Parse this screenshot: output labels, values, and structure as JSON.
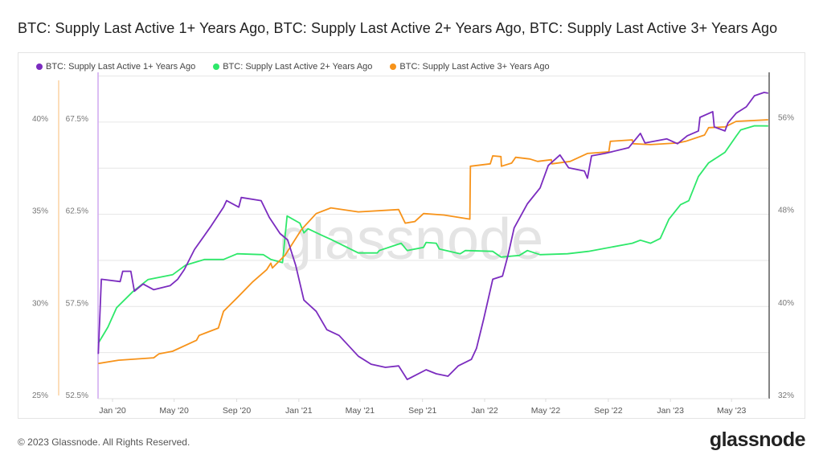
{
  "title": "BTC: Supply Last Active 1+ Years Ago, BTC: Supply Last Active 2+ Years Ago, BTC: Supply Last Active 3+ Years Ago",
  "footer": "© 2023 Glassnode. All Rights Reserved.",
  "logo": "glassnode",
  "watermark": "glassnode",
  "chart_data": {
    "type": "line",
    "grid": true,
    "legend_position": "top-left",
    "x_ticks": [
      "Jan '20",
      "May '20",
      "Sep '20",
      "Jan '21",
      "May '21",
      "Sep '21",
      "Jan '22",
      "May '22",
      "Sep '22",
      "Jan '23",
      "May '23"
    ],
    "x_tick_dates": [
      "2020-01-01",
      "2020-05-01",
      "2020-09-01",
      "2021-01-01",
      "2021-05-01",
      "2021-09-01",
      "2022-01-01",
      "2022-05-01",
      "2022-09-01",
      "2023-01-01",
      "2023-05-01"
    ],
    "axes": {
      "orange_left": {
        "ticks": [
          "25%",
          "30%",
          "35%",
          "40%"
        ],
        "tick_values": [
          25,
          30,
          35,
          40
        ],
        "ylim": [
          25,
          42.7
        ],
        "color": "#f7931a"
      },
      "purple_left": {
        "ticks": [
          "52.5%",
          "57.5%",
          "62.5%",
          "67.5%"
        ],
        "tick_values": [
          52.5,
          57.5,
          62.5,
          67.5
        ],
        "ylim": [
          52.5,
          70.2
        ],
        "color": "#7b2cbf"
      },
      "green_right": {
        "ticks": [
          "32%",
          "40%",
          "48%",
          "56%"
        ],
        "tick_values": [
          32,
          40,
          48,
          56
        ],
        "ylim": [
          32,
          60.2
        ],
        "color": "#222222"
      }
    },
    "series": [
      {
        "name": "BTC: Supply Last Active 1+ Years Ago",
        "color": "#7b2cbf",
        "axis": "purple_left",
        "points": [
          [
            "2019-12-04",
            54.93
          ],
          [
            "2019-12-10",
            58.98
          ],
          [
            "2020-01-16",
            58.85
          ],
          [
            "2020-01-21",
            59.41
          ],
          [
            "2020-02-06",
            59.41
          ],
          [
            "2020-02-13",
            58.33
          ],
          [
            "2020-03-01",
            58.72
          ],
          [
            "2020-03-22",
            58.41
          ],
          [
            "2020-04-23",
            58.63
          ],
          [
            "2020-05-08",
            58.98
          ],
          [
            "2020-05-21",
            59.5
          ],
          [
            "2020-06-10",
            60.59
          ],
          [
            "2020-07-11",
            61.8
          ],
          [
            "2020-08-06",
            62.89
          ],
          [
            "2020-08-12",
            63.24
          ],
          [
            "2020-09-05",
            62.89
          ],
          [
            "2020-09-10",
            63.41
          ],
          [
            "2020-10-19",
            63.24
          ],
          [
            "2020-11-04",
            62.33
          ],
          [
            "2020-11-25",
            61.46
          ],
          [
            "2020-12-10",
            61.11
          ],
          [
            "2020-12-26",
            59.72
          ],
          [
            "2021-01-11",
            57.85
          ],
          [
            "2021-02-04",
            57.24
          ],
          [
            "2021-02-25",
            56.24
          ],
          [
            "2021-03-21",
            55.93
          ],
          [
            "2021-04-28",
            54.8
          ],
          [
            "2021-05-23",
            54.37
          ],
          [
            "2021-06-20",
            54.2
          ],
          [
            "2021-07-16",
            54.28
          ],
          [
            "2021-08-02",
            53.54
          ],
          [
            "2021-09-08",
            54.07
          ],
          [
            "2021-09-28",
            53.85
          ],
          [
            "2021-10-21",
            53.72
          ],
          [
            "2021-11-10",
            54.28
          ],
          [
            "2021-12-06",
            54.63
          ],
          [
            "2021-12-16",
            55.24
          ],
          [
            "2021-12-30",
            56.8
          ],
          [
            "2022-01-17",
            58.98
          ],
          [
            "2022-02-05",
            59.15
          ],
          [
            "2022-02-16",
            60.28
          ],
          [
            "2022-02-28",
            61.76
          ],
          [
            "2022-03-26",
            63.07
          ],
          [
            "2022-04-20",
            63.93
          ],
          [
            "2022-05-06",
            65.15
          ],
          [
            "2022-05-29",
            65.72
          ],
          [
            "2022-06-15",
            65.02
          ],
          [
            "2022-07-16",
            64.85
          ],
          [
            "2022-07-22",
            64.46
          ],
          [
            "2022-07-30",
            65.67
          ],
          [
            "2022-08-25",
            65.8
          ],
          [
            "2022-10-11",
            66.11
          ],
          [
            "2022-11-03",
            66.89
          ],
          [
            "2022-11-12",
            66.37
          ],
          [
            "2022-12-25",
            66.59
          ],
          [
            "2023-01-15",
            66.33
          ],
          [
            "2023-02-03",
            66.76
          ],
          [
            "2023-02-25",
            67.02
          ],
          [
            "2023-02-28",
            67.76
          ],
          [
            "2023-03-25",
            68.07
          ],
          [
            "2023-03-28",
            67.24
          ],
          [
            "2023-04-18",
            67.02
          ],
          [
            "2023-04-24",
            67.46
          ],
          [
            "2023-05-10",
            67.98
          ],
          [
            "2023-05-30",
            68.33
          ],
          [
            "2023-06-15",
            68.93
          ],
          [
            "2023-07-04",
            69.11
          ],
          [
            "2023-07-12",
            69.07
          ]
        ]
      },
      {
        "name": "BTC: Supply Last Active 2+ Years Ago",
        "color": "#2ee86a",
        "axis": "green_right",
        "points": [
          [
            "2019-12-04",
            36.8
          ],
          [
            "2019-12-23",
            38.19
          ],
          [
            "2020-01-09",
            39.86
          ],
          [
            "2020-02-10",
            41.25
          ],
          [
            "2020-03-11",
            42.3
          ],
          [
            "2020-04-28",
            42.71
          ],
          [
            "2020-05-24",
            43.55
          ],
          [
            "2020-06-30",
            44.03
          ],
          [
            "2020-08-06",
            44.03
          ],
          [
            "2020-09-02",
            44.52
          ],
          [
            "2020-10-23",
            44.45
          ],
          [
            "2020-11-07",
            44.03
          ],
          [
            "2020-11-30",
            43.76
          ],
          [
            "2020-12-09",
            47.79
          ],
          [
            "2021-01-03",
            47.17
          ],
          [
            "2021-01-11",
            46.33
          ],
          [
            "2021-01-19",
            46.68
          ],
          [
            "2021-02-15",
            46.12
          ],
          [
            "2021-03-05",
            45.77
          ],
          [
            "2021-04-28",
            44.59
          ],
          [
            "2021-06-04",
            44.59
          ],
          [
            "2021-06-08",
            44.8
          ],
          [
            "2021-07-21",
            45.43
          ],
          [
            "2021-08-02",
            44.8
          ],
          [
            "2021-09-03",
            45.08
          ],
          [
            "2021-09-08",
            45.5
          ],
          [
            "2021-09-28",
            45.43
          ],
          [
            "2021-10-04",
            44.94
          ],
          [
            "2021-11-14",
            44.52
          ],
          [
            "2021-11-24",
            44.8
          ],
          [
            "2022-01-17",
            44.73
          ],
          [
            "2022-02-02",
            44.24
          ],
          [
            "2022-03-10",
            44.38
          ],
          [
            "2022-03-26",
            44.8
          ],
          [
            "2022-04-20",
            44.45
          ],
          [
            "2022-06-13",
            44.52
          ],
          [
            "2022-07-24",
            44.73
          ],
          [
            "2022-10-18",
            45.43
          ],
          [
            "2022-11-03",
            45.7
          ],
          [
            "2022-11-23",
            45.43
          ],
          [
            "2022-12-12",
            45.84
          ],
          [
            "2022-12-29",
            47.51
          ],
          [
            "2023-01-21",
            48.77
          ],
          [
            "2023-02-06",
            49.11
          ],
          [
            "2023-02-25",
            51.2
          ],
          [
            "2023-03-17",
            52.38
          ],
          [
            "2023-04-18",
            53.29
          ],
          [
            "2023-05-10",
            54.68
          ],
          [
            "2023-05-19",
            55.23
          ],
          [
            "2023-06-15",
            55.58
          ],
          [
            "2023-07-12",
            55.57
          ]
        ]
      },
      {
        "name": "BTC: Supply Last Active 3+ Years Ago",
        "color": "#f7931a",
        "axis": "orange_left",
        "points": [
          [
            "2019-12-04",
            26.91
          ],
          [
            "2020-01-13",
            27.09
          ],
          [
            "2020-03-22",
            27.22
          ],
          [
            "2020-04-01",
            27.43
          ],
          [
            "2020-04-28",
            27.57
          ],
          [
            "2020-06-14",
            28.17
          ],
          [
            "2020-06-19",
            28.43
          ],
          [
            "2020-07-27",
            28.83
          ],
          [
            "2020-08-06",
            29.74
          ],
          [
            "2020-09-02",
            30.48
          ],
          [
            "2020-10-03",
            31.35
          ],
          [
            "2020-10-30",
            32.0
          ],
          [
            "2020-11-07",
            32.35
          ],
          [
            "2020-11-10",
            32.09
          ],
          [
            "2020-12-05",
            32.78
          ],
          [
            "2021-01-06",
            34.17
          ],
          [
            "2021-02-04",
            35.04
          ],
          [
            "2021-03-05",
            35.35
          ],
          [
            "2021-04-28",
            35.13
          ],
          [
            "2021-07-16",
            35.26
          ],
          [
            "2021-07-29",
            34.52
          ],
          [
            "2021-08-17",
            34.61
          ],
          [
            "2021-09-03",
            35.04
          ],
          [
            "2021-10-13",
            34.96
          ],
          [
            "2021-12-03",
            34.74
          ],
          [
            "2021-12-04",
            37.61
          ],
          [
            "2022-01-12",
            37.74
          ],
          [
            "2022-01-17",
            38.17
          ],
          [
            "2022-02-02",
            38.13
          ],
          [
            "2022-02-03",
            37.61
          ],
          [
            "2022-02-23",
            37.78
          ],
          [
            "2022-03-03",
            38.09
          ],
          [
            "2022-03-31",
            38.0
          ],
          [
            "2022-04-15",
            37.87
          ],
          [
            "2022-05-12",
            37.96
          ],
          [
            "2022-05-13",
            37.74
          ],
          [
            "2022-06-18",
            37.87
          ],
          [
            "2022-07-22",
            38.3
          ],
          [
            "2022-09-02",
            38.39
          ],
          [
            "2022-09-05",
            38.96
          ],
          [
            "2022-10-18",
            39.04
          ],
          [
            "2022-10-20",
            38.83
          ],
          [
            "2022-11-23",
            38.78
          ],
          [
            "2023-01-15",
            38.87
          ],
          [
            "2023-01-31",
            38.96
          ],
          [
            "2023-03-09",
            39.3
          ],
          [
            "2023-03-17",
            39.7
          ],
          [
            "2023-04-18",
            39.74
          ],
          [
            "2023-05-10",
            40.04
          ],
          [
            "2023-07-12",
            40.13
          ]
        ]
      }
    ]
  }
}
